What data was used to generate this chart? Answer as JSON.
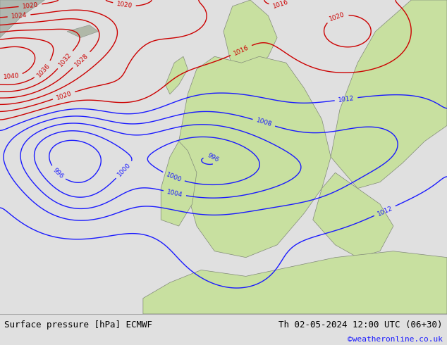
{
  "title_left": "Surface pressure [hPa] ECMWF",
  "title_right": "Th 02-05-2024 12:00 UTC (06+30)",
  "copyright": "©weatheronline.co.uk",
  "bg_color_map": "#d4e8c0",
  "land_color": "#c8e0a0",
  "sea_color": "#dcecc8",
  "footer_bg": "#e0e0e0",
  "text_color_black": "#000000",
  "text_color_blue": "#1a1aff",
  "text_color_red": "#cc0000",
  "figsize": [
    6.34,
    4.9
  ],
  "dpi": 100
}
